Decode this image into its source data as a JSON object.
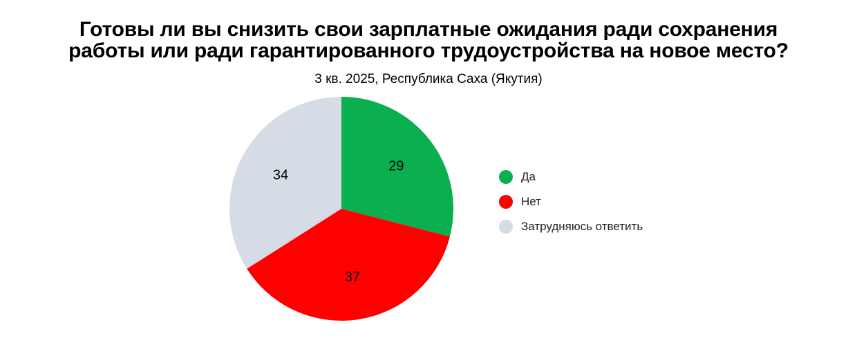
{
  "chart_data": {
    "type": "pie",
    "title_lines": [
      "Готовы ли вы снизить свои зарплатные ожидания ради сохранения",
      "работы или ради гарантированного трудоустройства на новое место?"
    ],
    "subtitle": "3 кв. 2025, Республика Саха (Якутия)",
    "legend_position": "right",
    "slices": [
      {
        "label": "Да",
        "value": 29,
        "color": "#0aaf50"
      },
      {
        "label": "Нет",
        "value": 37,
        "color": "#ff0000"
      },
      {
        "label": "Затрудняюсь ответить",
        "value": 34,
        "color": "#d6dce6"
      }
    ]
  }
}
